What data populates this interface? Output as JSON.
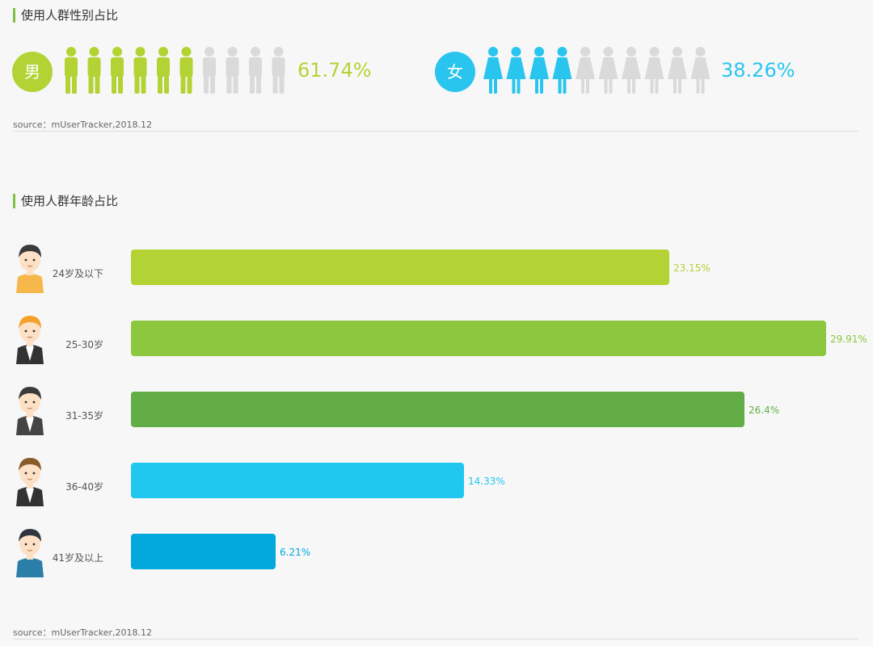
{
  "gender_section": {
    "title": "使用人群性别占比",
    "male": {
      "badge": "男",
      "percent_label": "61.74%",
      "filled_icons": 6,
      "total_icons": 10,
      "color": "#b3d334"
    },
    "female": {
      "badge": "女",
      "percent_label": "38.26%",
      "filled_icons": 4,
      "total_icons": 10,
      "color": "#29c5ef"
    },
    "inactive_color": "#dadada",
    "source": "source：mUserTracker,2018.12"
  },
  "age_section": {
    "title": "使用人群年龄占比",
    "source": "source：mUserTracker,2018.12"
  },
  "chart_data": [
    {
      "type": "bar",
      "title": "使用人群性别占比",
      "categories": [
        "男",
        "女"
      ],
      "values": [
        61.74,
        38.26
      ],
      "unit": "%"
    },
    {
      "type": "bar",
      "orientation": "horizontal",
      "title": "使用人群年龄占比",
      "categories": [
        "24岁及以下",
        "25-30岁",
        "31-35岁",
        "36-40岁",
        "41岁及以上"
      ],
      "values": [
        23.15,
        29.91,
        26.4,
        14.33,
        6.21
      ],
      "value_labels": [
        "23.15%",
        "29.91%",
        "26.4%",
        "14.33%",
        "6.21%"
      ],
      "colors": [
        "#b3d334",
        "#8dc63f",
        "#63ad47",
        "#20c8f0",
        "#03a9dc"
      ],
      "xlim": [
        0,
        29.91
      ],
      "grid": false
    }
  ]
}
